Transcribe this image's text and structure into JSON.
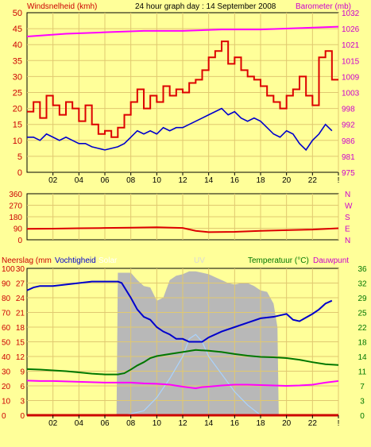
{
  "colors": {
    "background": "#ffff99",
    "plot_bg": "#ffff99",
    "grid": "#e0c870",
    "axis": "#000000",
    "wind_gust": "#dd0000",
    "wind_avg": "#0000cc",
    "barometer": "#ff00ff",
    "direction": "#dd0000",
    "humidity": "#0000cc",
    "temperature": "#007700",
    "dewpoint": "#ff00ff",
    "rain": "#cc0000",
    "solar": "#b8b8b8",
    "uv": "#aad4ff",
    "label_left": "#cc0000",
    "label_right": "#cc00cc",
    "label_solar": "#ffffff",
    "label_uv": "#d8d8d8",
    "label_temp": "#007700",
    "label_humidity": "#0000cc"
  },
  "chart_data": [
    {
      "type": "line",
      "title": "24 hour graph day : 14 September 2008",
      "ylabel": "Windsnelheid (kmh)",
      "y2label": "Barometer (mb)",
      "x_ticks": [
        "02",
        "04",
        "06",
        "08",
        "10",
        "12",
        "14",
        "16",
        "18",
        "20",
        "22",
        "!"
      ],
      "y_ticks": [
        "0",
        "5",
        "10",
        "15",
        "20",
        "25",
        "30",
        "35",
        "40",
        "45",
        "50"
      ],
      "y2_ticks": [
        "975",
        "981",
        "986",
        "992",
        "998",
        "1003",
        "1009",
        "1015",
        "1021",
        "1026",
        "1032"
      ],
      "xlim": [
        0,
        24
      ],
      "ylim": [
        0,
        50
      ],
      "y2lim": [
        975,
        1032
      ],
      "grid": true,
      "series": [
        {
          "key": "gust",
          "values_axis": "y",
          "x": [
            0,
            0.5,
            1,
            1.5,
            2,
            2.5,
            3,
            3.5,
            4,
            4.5,
            5,
            5.5,
            6,
            6.5,
            7,
            7.5,
            8,
            8.5,
            9,
            9.5,
            10,
            10.5,
            11,
            11.5,
            12,
            12.5,
            13,
            13.5,
            14,
            14.5,
            15,
            15.5,
            16,
            16.5,
            17,
            17.5,
            18,
            18.5,
            19,
            19.5,
            20,
            20.5,
            21,
            21.5,
            22,
            22.5,
            23,
            23.5
          ],
          "values": [
            19,
            22,
            17,
            24,
            21,
            18,
            22,
            20,
            16,
            21,
            15,
            12,
            13,
            11,
            14,
            18,
            22,
            26,
            20,
            24,
            22,
            27,
            24,
            26,
            25,
            28,
            29,
            32,
            36,
            38,
            41,
            34,
            36,
            32,
            30,
            29,
            27,
            24,
            22,
            20,
            24,
            26,
            30,
            24,
            21,
            36,
            38,
            29
          ]
        },
        {
          "key": "avg",
          "values_axis": "y",
          "x": [
            0,
            0.5,
            1,
            1.5,
            2,
            2.5,
            3,
            3.5,
            4,
            4.5,
            5,
            5.5,
            6,
            6.5,
            7,
            7.5,
            8,
            8.5,
            9,
            9.5,
            10,
            10.5,
            11,
            11.5,
            12,
            12.5,
            13,
            13.5,
            14,
            14.5,
            15,
            15.5,
            16,
            16.5,
            17,
            17.5,
            18,
            18.5,
            19,
            19.5,
            20,
            20.5,
            21,
            21.5,
            22,
            22.5,
            23,
            23.5
          ],
          "values": [
            11,
            11,
            10,
            12,
            11,
            10,
            11,
            10,
            9,
            9,
            8,
            7.5,
            7,
            7.5,
            8,
            9,
            11,
            13,
            12,
            13,
            12,
            14,
            13,
            14,
            14,
            15,
            16,
            17,
            18,
            19,
            20,
            18,
            19,
            17,
            16,
            17,
            16,
            14,
            12,
            11,
            13,
            12,
            9,
            7,
            10,
            12,
            15,
            13
          ]
        },
        {
          "key": "baro",
          "values_axis": "y2",
          "x": [
            0,
            3,
            6,
            9,
            12,
            15,
            18,
            21,
            24
          ],
          "values": [
            1023.5,
            1024.5,
            1025,
            1025.5,
            1025.5,
            1026,
            1026,
            1026.5,
            1027
          ]
        }
      ]
    },
    {
      "type": "line",
      "y_ticks": [
        "0",
        "90",
        "180",
        "270",
        "360"
      ],
      "y2_ticks": [
        "N",
        "E",
        "S",
        "W",
        "N"
      ],
      "ylim": [
        0,
        360
      ],
      "xlim": [
        0,
        24
      ],
      "grid": true,
      "series": [
        {
          "key": "direction",
          "x": [
            0,
            2,
            4,
            6,
            8,
            10,
            12,
            13,
            14,
            16,
            18,
            20,
            22,
            24
          ],
          "values": [
            85,
            87,
            90,
            92,
            95,
            98,
            92,
            70,
            60,
            62,
            70,
            75,
            80,
            90
          ]
        }
      ]
    },
    {
      "type": "area",
      "legend": {
        "rain": "Neerslag (mm",
        "humidity": "Vochtigheid",
        "solar": "Solar",
        "uv": "UV",
        "temperature": "Temperatuur (°C)",
        "dewpoint": "Dauwpunt"
      },
      "x_ticks": [
        "02",
        "04",
        "06",
        "08",
        "10",
        "12",
        "14",
        "16",
        "18",
        "20",
        "22",
        "!"
      ],
      "y_left_rain": [
        "0",
        "3",
        "6",
        "9",
        "12",
        "15",
        "18",
        "21",
        "24",
        "27",
        "30"
      ],
      "y_left_hum": [
        "0",
        "10",
        "20",
        "30",
        "40",
        "50",
        "60",
        "70",
        "80",
        "90",
        "100"
      ],
      "y_right_temp": [
        "0",
        "3",
        "7",
        "11",
        "14",
        "18",
        "22",
        "25",
        "29",
        "32",
        "36"
      ],
      "xlim": [
        0,
        24
      ],
      "grid": true,
      "series": [
        {
          "key": "solar",
          "axis": "hum_pct",
          "x": [
            0,
            6.9,
            7,
            7.5,
            8,
            8.5,
            9,
            9.5,
            10,
            10.5,
            11,
            11.5,
            12,
            12.5,
            13,
            13.5,
            14,
            14.5,
            15,
            15.5,
            16,
            16.5,
            17,
            17.5,
            18,
            18.5,
            19,
            19.3,
            19.4,
            24
          ],
          "values": [
            0,
            0,
            97,
            97,
            97,
            92,
            88,
            87,
            78,
            80,
            92,
            95,
            96,
            98,
            98,
            97,
            96,
            94,
            92,
            90,
            89,
            90,
            90,
            88,
            85,
            84,
            76,
            60,
            0,
            0
          ]
        },
        {
          "key": "uv",
          "axis": "hum_pct",
          "x": [
            0,
            7.5,
            9,
            10,
            11,
            12,
            12.5,
            13,
            13.5,
            14,
            15,
            16,
            17,
            18,
            24
          ],
          "values": [
            0,
            0,
            3,
            12,
            25,
            40,
            52,
            55,
            50,
            40,
            28,
            16,
            7,
            0,
            0
          ]
        },
        {
          "key": "humidity",
          "axis": "hum_pct",
          "x": [
            0,
            0.5,
            1,
            2,
            3,
            4,
            5,
            6,
            7,
            7.3,
            8,
            8.5,
            9,
            9.5,
            10,
            10.5,
            11,
            11.5,
            12,
            12.5,
            13,
            13.5,
            14,
            15,
            16,
            17,
            18,
            19,
            19.5,
            20,
            20.5,
            21,
            22,
            22.5,
            23,
            23.5
          ],
          "values": [
            85,
            87,
            88,
            88,
            89,
            90,
            91,
            91,
            91,
            90,
            80,
            72,
            67,
            65,
            60,
            57,
            55,
            52,
            52,
            50,
            50,
            50,
            53,
            57,
            60,
            63,
            66,
            67,
            68,
            69,
            65,
            64,
            69,
            72,
            76,
            78
          ]
        },
        {
          "key": "temperature",
          "axis": "temp",
          "x": [
            0,
            1,
            2,
            3,
            4,
            5,
            6,
            7,
            7.5,
            8,
            8.5,
            9,
            9.5,
            10,
            11,
            12,
            13,
            14,
            15,
            16,
            17,
            18,
            19,
            20,
            21,
            22,
            23,
            24
          ],
          "values": [
            11.3,
            11.2,
            11.0,
            10.8,
            10.5,
            10.2,
            10,
            10,
            10.3,
            11.2,
            12.2,
            13.0,
            14.0,
            14.5,
            15.0,
            15.5,
            16.0,
            15.8,
            15.5,
            15.0,
            14.6,
            14.3,
            14.2,
            14.0,
            13.6,
            13.0,
            12.5,
            12.3
          ]
        },
        {
          "key": "dewpoint",
          "axis": "temp",
          "x": [
            0,
            1,
            2,
            3,
            4,
            5,
            6,
            7,
            8,
            9,
            10,
            11,
            12,
            12.5,
            13,
            13.5,
            14,
            15,
            16,
            17,
            18,
            19,
            20,
            21,
            22,
            23,
            24
          ],
          "values": [
            8.5,
            8.4,
            8.4,
            8.3,
            8.2,
            8.1,
            8.0,
            8.0,
            8.0,
            7.8,
            7.7,
            7.5,
            7.0,
            6.8,
            6.6,
            6.9,
            7.0,
            7.3,
            7.5,
            7.5,
            7.4,
            7.3,
            7.2,
            7.3,
            7.5,
            8.0,
            8.4
          ]
        },
        {
          "key": "rain",
          "axis": "rain",
          "x": [
            0,
            24
          ],
          "values": [
            0,
            0
          ]
        }
      ]
    }
  ]
}
